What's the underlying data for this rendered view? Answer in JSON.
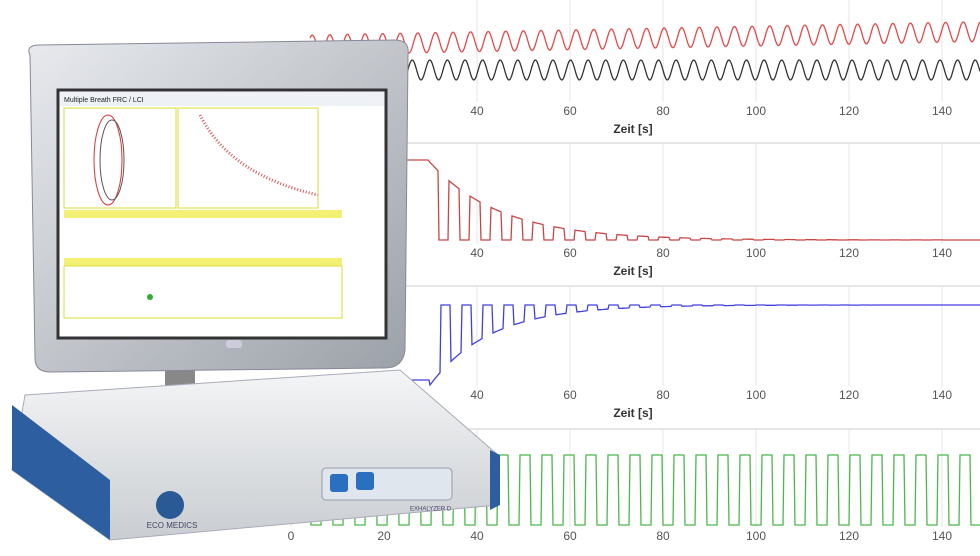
{
  "panels": [
    {
      "xticks": [
        40,
        60,
        80,
        100,
        120,
        140
      ],
      "xlabel": "Zeit [s]"
    },
    {
      "xticks": [
        40,
        60,
        80,
        100,
        120,
        140
      ],
      "xlabel": "Zeit [s]"
    },
    {
      "xticks": [
        40,
        60,
        80,
        100,
        120,
        140
      ],
      "xlabel": "Zeit [s]"
    },
    {
      "xticks": [
        0,
        20,
        40,
        60,
        80,
        100,
        120,
        140
      ]
    }
  ],
  "device": {
    "screen_title": "Multiple Breath FRC / LCI",
    "brand": "ECO MEDICS",
    "model": "EXHALYZER D"
  }
}
